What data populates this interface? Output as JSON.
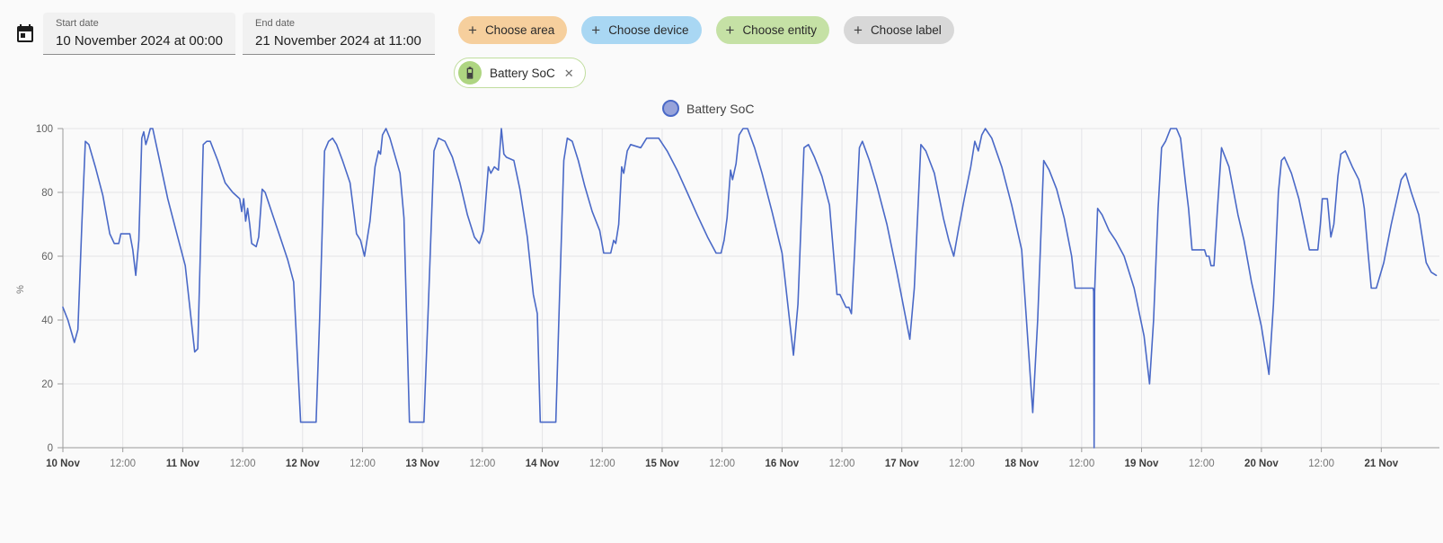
{
  "header": {
    "calendar_icon": "calendar-icon",
    "start_field": {
      "label": "Start date",
      "value": "10 November 2024 at 00:00"
    },
    "end_field": {
      "label": "End date",
      "value": "21 November 2024 at 11:00"
    }
  },
  "filters": {
    "plus_icon": "+",
    "chips": [
      {
        "label": "Choose area",
        "color": "#f6cf9d"
      },
      {
        "label": "Choose device",
        "color": "#a9d7f3"
      },
      {
        "label": "Choose entity",
        "color": "#c5e1a5"
      },
      {
        "label": "Choose label",
        "color": "#d8d8d8"
      }
    ],
    "selected_entity": {
      "label": "Battery SoC",
      "icon": "battery-icon",
      "avatar_color": "#aed581",
      "border_color": "#c0dd9e",
      "close_icon": "✕"
    }
  },
  "legend": {
    "label": "Battery SoC",
    "dot_fill": "#97a3da",
    "dot_border": "#4a69c7"
  },
  "chart_data": {
    "type": "line",
    "title": "Battery SoC",
    "ylabel": "%",
    "ylim": [
      0,
      100
    ],
    "y_ticks": [
      0,
      20,
      40,
      60,
      80,
      100
    ],
    "grid": true,
    "legend_position": "top-center",
    "line_color": "#4a69c7",
    "x_unit": "hours since 10 Nov 2024 00:00",
    "xlim": [
      0,
      275.7
    ],
    "x_ticks": [
      {
        "t": 0,
        "label": "10 Nov",
        "type": "date"
      },
      {
        "t": 12,
        "label": "12:00",
        "type": "time"
      },
      {
        "t": 24,
        "label": "11 Nov",
        "type": "date"
      },
      {
        "t": 36,
        "label": "12:00",
        "type": "time"
      },
      {
        "t": 48,
        "label": "12 Nov",
        "type": "date"
      },
      {
        "t": 60,
        "label": "12:00",
        "type": "time"
      },
      {
        "t": 72,
        "label": "13 Nov",
        "type": "date"
      },
      {
        "t": 84,
        "label": "12:00",
        "type": "time"
      },
      {
        "t": 96,
        "label": "14 Nov",
        "type": "date"
      },
      {
        "t": 108,
        "label": "12:00",
        "type": "time"
      },
      {
        "t": 120,
        "label": "15 Nov",
        "type": "date"
      },
      {
        "t": 132,
        "label": "12:00",
        "type": "time"
      },
      {
        "t": 144,
        "label": "16 Nov",
        "type": "date"
      },
      {
        "t": 156,
        "label": "12:00",
        "type": "time"
      },
      {
        "t": 168,
        "label": "17 Nov",
        "type": "date"
      },
      {
        "t": 180,
        "label": "12:00",
        "type": "time"
      },
      {
        "t": 192,
        "label": "18 Nov",
        "type": "date"
      },
      {
        "t": 204,
        "label": "12:00",
        "type": "time"
      },
      {
        "t": 216,
        "label": "19 Nov",
        "type": "date"
      },
      {
        "t": 228,
        "label": "12:00",
        "type": "time"
      },
      {
        "t": 240,
        "label": "20 Nov",
        "type": "date"
      },
      {
        "t": 252,
        "label": "12:00",
        "type": "time"
      },
      {
        "t": 264,
        "label": "21 Nov",
        "type": "date"
      }
    ],
    "series": [
      {
        "name": "Battery SoC",
        "points": [
          [
            0,
            44
          ],
          [
            1,
            40
          ],
          [
            2.3,
            33
          ],
          [
            3,
            37
          ],
          [
            3.8,
            70
          ],
          [
            4.5,
            96
          ],
          [
            5.2,
            95
          ],
          [
            6.5,
            88
          ],
          [
            8,
            79
          ],
          [
            9.4,
            67
          ],
          [
            10.3,
            64
          ],
          [
            11.2,
            64
          ],
          [
            11.6,
            67
          ],
          [
            13.4,
            67
          ],
          [
            14,
            62
          ],
          [
            14.6,
            54
          ],
          [
            15.2,
            65
          ],
          [
            15.8,
            97
          ],
          [
            16.2,
            99
          ],
          [
            16.6,
            95
          ],
          [
            17,
            97
          ],
          [
            17.5,
            100
          ],
          [
            18,
            100
          ],
          [
            19.5,
            89
          ],
          [
            21,
            78
          ],
          [
            23,
            66
          ],
          [
            24.5,
            57
          ],
          [
            26.4,
            30
          ],
          [
            27,
            31
          ],
          [
            28.1,
            95
          ],
          [
            28.8,
            96
          ],
          [
            29.5,
            96
          ],
          [
            31,
            90
          ],
          [
            32.5,
            83
          ],
          [
            34,
            80
          ],
          [
            35.4,
            78
          ],
          [
            35.8,
            74
          ],
          [
            36.2,
            78
          ],
          [
            36.6,
            71
          ],
          [
            37,
            75
          ],
          [
            37.4,
            70
          ],
          [
            37.8,
            64
          ],
          [
            38.7,
            63
          ],
          [
            39.2,
            66
          ],
          [
            39.9,
            81
          ],
          [
            40.5,
            80
          ],
          [
            42,
            73
          ],
          [
            43.5,
            66
          ],
          [
            45,
            59
          ],
          [
            46.2,
            52
          ],
          [
            47.6,
            8
          ],
          [
            50.7,
            8
          ],
          [
            51.4,
            40
          ],
          [
            52.4,
            93
          ],
          [
            53.2,
            96
          ],
          [
            54,
            97
          ],
          [
            54.8,
            95
          ],
          [
            56,
            90
          ],
          [
            57.5,
            83
          ],
          [
            58.8,
            67
          ],
          [
            59.6,
            65
          ],
          [
            60.4,
            60
          ],
          [
            61,
            66
          ],
          [
            61.5,
            71
          ],
          [
            62.5,
            88
          ],
          [
            63.2,
            93
          ],
          [
            63.6,
            92
          ],
          [
            64,
            98
          ],
          [
            64.7,
            100
          ],
          [
            65.5,
            97
          ],
          [
            67.5,
            86
          ],
          [
            68.3,
            72
          ],
          [
            69.4,
            8
          ],
          [
            72.3,
            8
          ],
          [
            73.2,
            45
          ],
          [
            74.3,
            93
          ],
          [
            75.2,
            97
          ],
          [
            76.5,
            96
          ],
          [
            78,
            91
          ],
          [
            79.5,
            83
          ],
          [
            81,
            73
          ],
          [
            82.4,
            66
          ],
          [
            83.4,
            64
          ],
          [
            84.2,
            68
          ],
          [
            85.2,
            88
          ],
          [
            85.7,
            86
          ],
          [
            86.4,
            88
          ],
          [
            87.2,
            87
          ],
          [
            87.8,
            100
          ],
          [
            88.3,
            92
          ],
          [
            88.8,
            91
          ],
          [
            90.3,
            90
          ],
          [
            91.5,
            81
          ],
          [
            93,
            66
          ],
          [
            94.2,
            48
          ],
          [
            95,
            42
          ],
          [
            95.6,
            8
          ],
          [
            98.7,
            8
          ],
          [
            99.4,
            45
          ],
          [
            100.3,
            90
          ],
          [
            101,
            97
          ],
          [
            102,
            96
          ],
          [
            103.2,
            90
          ],
          [
            104.5,
            82
          ],
          [
            106,
            74
          ],
          [
            107.5,
            68
          ],
          [
            108.3,
            61
          ],
          [
            109.7,
            61
          ],
          [
            110.3,
            65
          ],
          [
            110.7,
            64
          ],
          [
            111.3,
            70
          ],
          [
            111.9,
            88
          ],
          [
            112.3,
            86
          ],
          [
            113,
            93
          ],
          [
            113.7,
            95
          ],
          [
            115.7,
            94
          ],
          [
            116.9,
            97
          ],
          [
            119.3,
            97
          ],
          [
            121,
            93
          ],
          [
            123,
            87
          ],
          [
            125,
            80
          ],
          [
            127,
            73
          ],
          [
            129.1,
            66
          ],
          [
            130.8,
            61
          ],
          [
            131.8,
            61
          ],
          [
            132.4,
            65
          ],
          [
            133,
            72
          ],
          [
            133.7,
            87
          ],
          [
            134.1,
            84
          ],
          [
            134.8,
            89
          ],
          [
            135.4,
            98
          ],
          [
            136.2,
            100
          ],
          [
            137.1,
            100
          ],
          [
            138.5,
            94
          ],
          [
            140,
            86
          ],
          [
            142,
            74
          ],
          [
            144,
            61
          ],
          [
            146.3,
            29
          ],
          [
            147.2,
            45
          ],
          [
            148.4,
            94
          ],
          [
            149.3,
            95
          ],
          [
            150.5,
            91
          ],
          [
            152,
            85
          ],
          [
            153.5,
            76
          ],
          [
            155,
            48
          ],
          [
            155.6,
            48
          ],
          [
            156.2,
            46
          ],
          [
            156.8,
            44
          ],
          [
            157.4,
            44
          ],
          [
            157.9,
            42
          ],
          [
            158.5,
            60
          ],
          [
            159.5,
            94
          ],
          [
            160.1,
            96
          ],
          [
            161.5,
            90
          ],
          [
            163,
            82
          ],
          [
            165,
            70
          ],
          [
            167,
            55
          ],
          [
            169.6,
            34
          ],
          [
            170.5,
            50
          ],
          [
            171.8,
            95
          ],
          [
            172.8,
            93
          ],
          [
            174.5,
            86
          ],
          [
            176.3,
            72
          ],
          [
            177.4,
            65
          ],
          [
            178.4,
            60
          ],
          [
            179.3,
            68
          ],
          [
            180.5,
            78
          ],
          [
            181.8,
            88
          ],
          [
            182.6,
            96
          ],
          [
            183.3,
            93
          ],
          [
            184,
            98
          ],
          [
            184.7,
            100
          ],
          [
            186,
            97
          ],
          [
            188,
            88
          ],
          [
            190,
            76
          ],
          [
            192,
            62
          ],
          [
            194.2,
            11
          ],
          [
            195.2,
            40
          ],
          [
            196.4,
            90
          ],
          [
            197.5,
            87
          ],
          [
            199,
            81
          ],
          [
            200.5,
            72
          ],
          [
            202,
            60
          ],
          [
            202.7,
            50
          ],
          [
            206.3,
            50
          ],
          [
            206.4,
            49
          ],
          [
            206.5,
            0
          ],
          [
            206.6,
            49
          ],
          [
            207.2,
            75
          ],
          [
            208.1,
            73
          ],
          [
            209.5,
            68
          ],
          [
            210.8,
            65
          ],
          [
            212.5,
            60
          ],
          [
            214.5,
            50
          ],
          [
            216.5,
            35
          ],
          [
            217.6,
            20
          ],
          [
            218.4,
            40
          ],
          [
            219.3,
            75
          ],
          [
            220,
            94
          ],
          [
            220.8,
            96
          ],
          [
            221.8,
            100
          ],
          [
            223,
            100
          ],
          [
            223.8,
            97
          ],
          [
            224.8,
            83
          ],
          [
            225.4,
            75
          ],
          [
            226.1,
            62
          ],
          [
            228.6,
            62
          ],
          [
            229,
            60
          ],
          [
            229.5,
            60
          ],
          [
            229.9,
            57
          ],
          [
            230.5,
            57
          ],
          [
            231.2,
            75
          ],
          [
            232,
            94
          ],
          [
            233.5,
            88
          ],
          [
            235.3,
            73
          ],
          [
            236.5,
            65
          ],
          [
            238,
            52
          ],
          [
            240,
            38
          ],
          [
            241.5,
            23
          ],
          [
            242.4,
            45
          ],
          [
            243.4,
            80
          ],
          [
            244,
            90
          ],
          [
            244.6,
            91
          ],
          [
            246,
            86
          ],
          [
            247.5,
            78
          ],
          [
            249.6,
            62
          ],
          [
            251.3,
            62
          ],
          [
            251.8,
            70
          ],
          [
            252.2,
            78
          ],
          [
            253.2,
            78
          ],
          [
            253.9,
            66
          ],
          [
            254.5,
            70
          ],
          [
            255.3,
            85
          ],
          [
            255.9,
            92
          ],
          [
            256.8,
            93
          ],
          [
            258.2,
            88
          ],
          [
            259.5,
            84
          ],
          [
            260.2,
            79
          ],
          [
            260.6,
            75
          ],
          [
            261.3,
            62
          ],
          [
            262,
            50
          ],
          [
            263,
            50
          ],
          [
            264.5,
            58
          ],
          [
            266,
            70
          ],
          [
            268,
            84
          ],
          [
            268.9,
            86
          ],
          [
            270,
            80
          ],
          [
            271.5,
            73
          ],
          [
            273,
            58
          ],
          [
            274,
            55
          ],
          [
            275,
            54
          ]
        ]
      }
    ],
    "colors": {
      "gridline": "#e4e4e7",
      "axis": "#9b9b9b",
      "y_label": "#616161",
      "x_date_label": "#3d3d3d",
      "x_time_label": "#757575"
    }
  }
}
